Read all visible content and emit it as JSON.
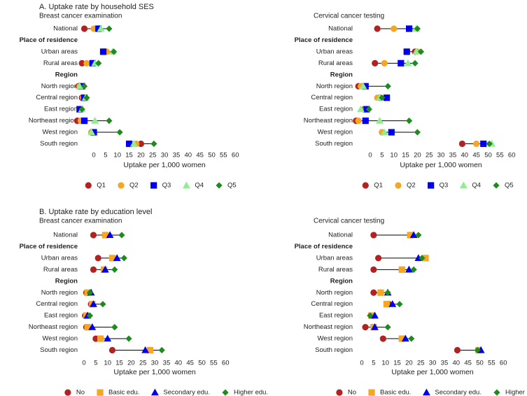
{
  "chart_data": [
    {
      "type": "dotplot",
      "title": "A. Uptake rate by household SES",
      "subtitle": "Breast cancer examination",
      "x_label": "Uptake per 1,000 women",
      "categories": [
        "National",
        "Place of residence",
        "Urban areas",
        "Rural areas",
        "Region",
        "North region",
        "Central region",
        "East region",
        "Northeast region",
        "West region",
        "South region"
      ],
      "series": [
        {
          "name": "Q1",
          "color": "#b22222",
          "marker": "circle",
          "values": [
            -4,
            null,
            4.5,
            -5,
            null,
            -6.5,
            -5,
            -6,
            -7,
            -1,
            20
          ]
        },
        {
          "name": "Q2",
          "color": "#f5a623",
          "marker": "circle",
          "values": [
            0,
            null,
            5.5,
            -3,
            null,
            -6,
            -4.5,
            -6,
            -5.5,
            -1,
            18
          ]
        },
        {
          "name": "Q3",
          "color": "#0000ee",
          "marker": "square",
          "values": [
            2,
            null,
            4,
            -0.5,
            null,
            -5,
            -4,
            -6,
            -4,
            0,
            15
          ]
        },
        {
          "name": "Q4",
          "color": "#90ee90",
          "marker": "triangle",
          "values": [
            3,
            null,
            8,
            0.5,
            null,
            -6,
            -3.5,
            -5,
            0.5,
            -1,
            17
          ]
        },
        {
          "name": "Q5",
          "color": "#1f8b1f",
          "marker": "diamond",
          "values": [
            6.5,
            null,
            8.5,
            2,
            null,
            -4,
            -3,
            -5,
            6.5,
            11,
            25.5
          ]
        }
      ],
      "xlim": [
        -8,
        62
      ],
      "xticks": [
        0,
        5,
        10,
        15,
        20,
        25,
        30,
        35,
        40,
        45,
        50,
        55,
        60
      ]
    },
    {
      "type": "dotplot",
      "subtitle": "Cervical cancer testing",
      "x_label": "Uptake per 1,000 women",
      "categories": [
        "National",
        "Place of residence",
        "Urban areas",
        "Rural areas",
        "Region",
        "North region",
        "Central region",
        "East region",
        "Northeast region",
        "West region",
        "South region"
      ],
      "series": [
        {
          "name": "Q1",
          "color": "#b22222",
          "marker": "circle",
          "values": [
            3,
            null,
            19,
            2,
            null,
            -5,
            4,
            -2.5,
            -6,
            5,
            39
          ]
        },
        {
          "name": "Q2",
          "color": "#f5a623",
          "marker": "circle",
          "values": [
            10,
            null,
            20,
            6,
            null,
            -4,
            3,
            -2,
            -5,
            5,
            45
          ]
        },
        {
          "name": "Q3",
          "color": "#0000ee",
          "marker": "square",
          "values": [
            16.5,
            null,
            15.5,
            13,
            null,
            -2,
            7,
            -1.5,
            -2,
            9,
            48
          ]
        },
        {
          "name": "Q4",
          "color": "#90ee90",
          "marker": "triangle",
          "values": [
            19.5,
            null,
            19.5,
            16,
            null,
            -3,
            4,
            -4,
            4,
            6,
            51.5
          ]
        },
        {
          "name": "Q5",
          "color": "#1f8b1f",
          "marker": "diamond",
          "values": [
            20,
            null,
            21.5,
            19,
            null,
            7.5,
            5,
            -0.5,
            16.5,
            20,
            50.5
          ]
        }
      ],
      "xlim": [
        -8,
        62
      ],
      "xticks": [
        0,
        5,
        10,
        15,
        20,
        25,
        30,
        35,
        40,
        45,
        50,
        55,
        60
      ]
    },
    {
      "type": "dotplot",
      "title": "B. Uptake rate by education level",
      "subtitle": "Breast cancer examination",
      "x_label": "Uptake per 1,000 women",
      "categories": [
        "National",
        "Place of residence",
        "Urban areas",
        "Rural areas",
        "Region",
        "North region",
        "Central region",
        "East region",
        "Northeast region",
        "West region",
        "South region"
      ],
      "series": [
        {
          "name": "No",
          "color": "#b22222",
          "marker": "circle",
          "values": [
            4,
            null,
            6,
            4,
            null,
            1,
            3,
            0.5,
            1,
            5,
            12
          ]
        },
        {
          "name": "Basic edu.",
          "color": "#f5a623",
          "marker": "square",
          "values": [
            9,
            null,
            12,
            8.5,
            null,
            1.5,
            3.5,
            1,
            1.5,
            7,
            28
          ]
        },
        {
          "name": "Secondary edu.",
          "color": "#0000ee",
          "marker": "triangle",
          "values": [
            11,
            null,
            14,
            9,
            null,
            3,
            4,
            1.5,
            3.5,
            10,
            26
          ]
        },
        {
          "name": "Higher edu.",
          "color": "#1f8b1f",
          "marker": "diamond",
          "values": [
            16,
            null,
            17,
            13,
            null,
            2.5,
            8,
            2.5,
            13,
            19,
            33
          ]
        }
      ],
      "xlim": [
        -8,
        62
      ],
      "xticks": [
        0,
        5,
        10,
        15,
        20,
        25,
        30,
        35,
        40,
        45,
        50,
        55,
        60
      ]
    },
    {
      "type": "dotplot",
      "subtitle": "Cervical cancer testing",
      "x_label": "Uptake per 1,000 women",
      "categories": [
        "National",
        "Place of residence",
        "Urban areas",
        "Rural areas",
        "Region",
        "North region",
        "Central region",
        "East region",
        "Northeast region",
        "West region",
        "South region"
      ],
      "series": [
        {
          "name": "No",
          "color": "#b22222",
          "marker": "circle",
          "values": [
            5,
            null,
            7,
            5,
            null,
            5,
            11.5,
            4,
            1.5,
            9,
            40.5
          ]
        },
        {
          "name": "Basic edu.",
          "color": "#f5a623",
          "marker": "square",
          "values": [
            20.5,
            null,
            27,
            17,
            null,
            8,
            10.5,
            4,
            5,
            17,
            49.5
          ]
        },
        {
          "name": "Secondary edu.",
          "color": "#0000ee",
          "marker": "triangle",
          "values": [
            22,
            null,
            24,
            20,
            null,
            11,
            13,
            5.5,
            5.5,
            18.5,
            50.5
          ]
        },
        {
          "name": "Higher edu.",
          "color": "#1f8b1f",
          "marker": "diamond",
          "values": [
            24,
            null,
            25.5,
            22,
            null,
            11,
            16,
            3.5,
            11,
            21,
            49
          ]
        }
      ],
      "xlim": [
        -8,
        62
      ],
      "xticks": [
        0,
        5,
        10,
        15,
        20,
        25,
        30,
        35,
        40,
        45,
        50,
        55,
        60
      ]
    }
  ]
}
